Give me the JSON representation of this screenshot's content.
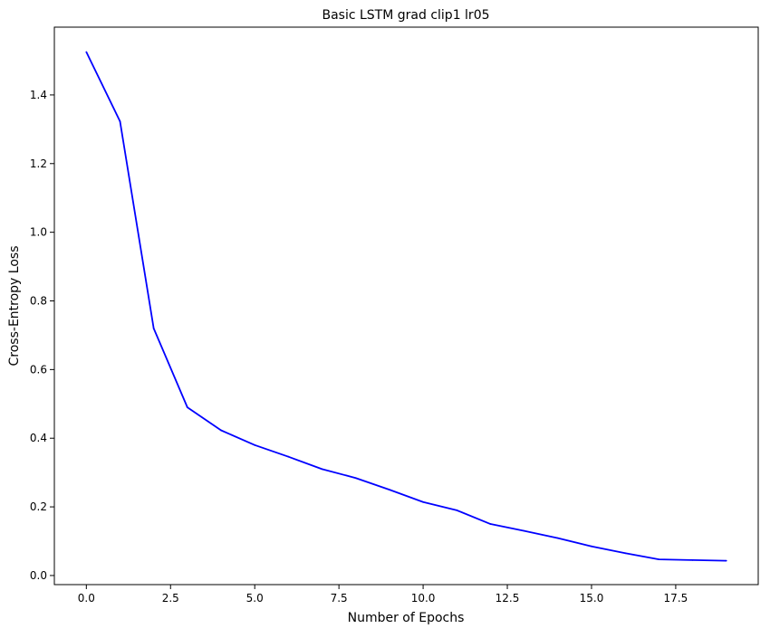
{
  "chart_data": {
    "type": "line",
    "title": "Basic LSTM grad clip1 lr05",
    "xlabel": "Number of Epochs",
    "ylabel": "Cross-Entropy Loss",
    "xlim": [
      -0.95,
      19.95
    ],
    "ylim": [
      -0.0265,
      1.5975
    ],
    "x_ticks": [
      0.0,
      2.5,
      5.0,
      7.5,
      10.0,
      12.5,
      15.0,
      17.5
    ],
    "x_tick_labels": [
      "0.0",
      "2.5",
      "5.0",
      "7.5",
      "10.0",
      "12.5",
      "15.0",
      "17.5"
    ],
    "y_ticks": [
      0.0,
      0.2,
      0.4,
      0.6,
      0.8,
      1.0,
      1.2,
      1.4
    ],
    "y_tick_labels": [
      "0.0",
      "0.2",
      "0.4",
      "0.6",
      "0.8",
      "1.0",
      "1.2",
      "1.4"
    ],
    "grid": false,
    "series": [
      {
        "color": "#0000ff",
        "x": [
          0,
          1,
          2,
          3,
          4,
          5,
          6,
          7,
          8,
          9,
          10,
          11,
          12,
          13,
          14,
          15,
          16,
          17,
          18,
          19
        ],
        "y": [
          1.525,
          1.323,
          0.72,
          0.49,
          0.423,
          0.38,
          0.346,
          0.31,
          0.284,
          0.25,
          0.214,
          0.19,
          0.15,
          0.13,
          0.109,
          0.085,
          0.065,
          0.047,
          0.045,
          0.043
        ]
      }
    ]
  }
}
